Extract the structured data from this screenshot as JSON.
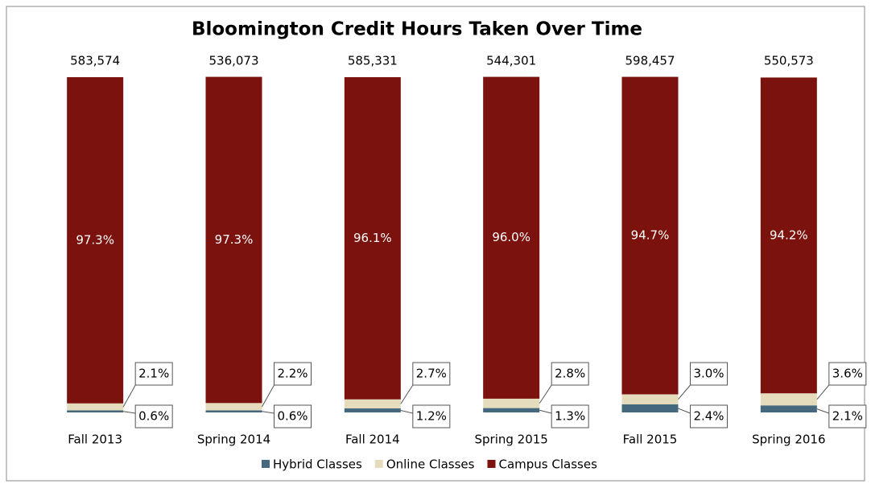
{
  "chart_data": {
    "type": "stacked_bar_100",
    "title": "Bloomington Credit Hours Taken Over Time",
    "categories": [
      "Fall 2013",
      "Spring 2014",
      "Fall 2014",
      "Spring 2015",
      "Fall 2015",
      "Spring 2016"
    ],
    "totals": {
      "values": [
        583574,
        536073,
        585331,
        544301,
        598457,
        550573
      ],
      "value_labels": [
        "583,574",
        "536,073",
        "585,331",
        "544,301",
        "598,457",
        "550,573"
      ]
    },
    "series": [
      {
        "name": "Hybrid Classes",
        "color": "#44687d",
        "values": [
          0.6,
          0.6,
          1.2,
          1.3,
          2.4,
          2.1
        ],
        "value_labels": [
          "0.6%",
          "0.6%",
          "1.2%",
          "1.3%",
          "2.4%",
          "2.1%"
        ]
      },
      {
        "name": "Online Classes",
        "color": "#e5dbbd",
        "values": [
          2.1,
          2.2,
          2.7,
          2.8,
          3.0,
          3.6
        ],
        "value_labels": [
          "2.1%",
          "2.2%",
          "2.7%",
          "2.8%",
          "3.0%",
          "3.6%"
        ]
      },
      {
        "name": "Campus Classes",
        "color": "#7b120d",
        "values": [
          97.3,
          97.3,
          96.1,
          96.0,
          94.7,
          94.2
        ],
        "value_labels": [
          "97.3%",
          "97.3%",
          "96.1%",
          "96.0%",
          "94.7%",
          "94.2%"
        ]
      }
    ],
    "ylim": [
      0,
      100
    ],
    "legend": "bottom"
  }
}
